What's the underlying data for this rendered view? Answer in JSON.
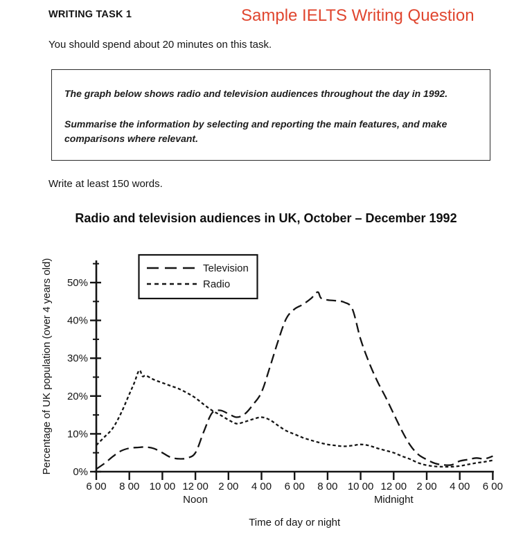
{
  "header": {
    "task_title": "WRITING TASK 1",
    "sample_title": "Sample IELTS Writing Question",
    "accent_color": "#e0462f",
    "time_note": "You should spend about 20 minutes on this task."
  },
  "prompt": {
    "line1": "The graph below shows radio and television audiences throughout the day in 1992.",
    "line2": "Summarise the information by selecting and reporting the main features, and make comparisons where relevant.",
    "word_note": "Write at least 150 words."
  },
  "chart_data": {
    "type": "line",
    "title": "Radio and television audiences in UK, October – December 1992",
    "xlabel": "Time of day or night",
    "ylabel": "Percentage of UK population (over 4 years old)",
    "stroke_color": "#141414",
    "grid": false,
    "legend_position": "top-left-inside",
    "x_hours_range": [
      6,
      30
    ],
    "ylim": [
      0,
      55
    ],
    "x_ticks": [
      {
        "t": 6,
        "label": "6 00"
      },
      {
        "t": 8,
        "label": "8 00"
      },
      {
        "t": 10,
        "label": "10 00"
      },
      {
        "t": 12,
        "label": "12 00",
        "sub": "Noon"
      },
      {
        "t": 14,
        "label": "2 00"
      },
      {
        "t": 16,
        "label": "4 00"
      },
      {
        "t": 18,
        "label": "6 00"
      },
      {
        "t": 20,
        "label": "8 00"
      },
      {
        "t": 22,
        "label": "10 00"
      },
      {
        "t": 24,
        "label": "12 00",
        "sub": "Midnight"
      },
      {
        "t": 26,
        "label": "2 00"
      },
      {
        "t": 28,
        "label": "4 00"
      },
      {
        "t": 30,
        "label": "6 00"
      }
    ],
    "y_ticks": [
      {
        "v": 0,
        "label": "0%"
      },
      {
        "v": 10,
        "label": "10%"
      },
      {
        "v": 20,
        "label": "20%"
      },
      {
        "v": 30,
        "label": "30%"
      },
      {
        "v": 40,
        "label": "40%"
      },
      {
        "v": 50,
        "label": "50%"
      }
    ],
    "y_minor_ticks": [
      5,
      15,
      25,
      35,
      45,
      55
    ],
    "legend": [
      {
        "name": "Television",
        "dash": "long"
      },
      {
        "name": "Radio",
        "dash": "short"
      }
    ],
    "series": [
      {
        "name": "Television",
        "dash": "long",
        "points": [
          [
            6,
            0.7
          ],
          [
            6.5,
            2.2
          ],
          [
            7,
            4
          ],
          [
            7.5,
            5.5
          ],
          [
            8,
            6.2
          ],
          [
            8.5,
            6.4
          ],
          [
            9,
            6.5
          ],
          [
            9.5,
            6.1
          ],
          [
            10,
            5
          ],
          [
            10.5,
            3.8
          ],
          [
            11,
            3.4
          ],
          [
            11.5,
            3.6
          ],
          [
            12,
            5
          ],
          [
            12.5,
            10.5
          ],
          [
            13,
            15.5
          ],
          [
            13.5,
            16.2
          ],
          [
            14,
            15.3
          ],
          [
            14.5,
            14.4
          ],
          [
            15,
            15.3
          ],
          [
            15.5,
            17.8
          ],
          [
            16,
            21
          ],
          [
            16.5,
            27.5
          ],
          [
            17,
            34.5
          ],
          [
            17.5,
            40.5
          ],
          [
            18,
            43
          ],
          [
            18.5,
            44.2
          ],
          [
            19,
            45.8
          ],
          [
            19.4,
            47.5
          ],
          [
            19.6,
            45.9
          ],
          [
            20,
            45.4
          ],
          [
            20.5,
            45.2
          ],
          [
            21,
            44.8
          ],
          [
            21.5,
            43
          ],
          [
            22,
            35
          ],
          [
            22.5,
            29
          ],
          [
            23,
            24
          ],
          [
            23.5,
            19.8
          ],
          [
            24,
            15.3
          ],
          [
            24.5,
            10.8
          ],
          [
            25,
            7
          ],
          [
            25.5,
            4.5
          ],
          [
            26,
            3.2
          ],
          [
            26.5,
            2.2
          ],
          [
            27,
            1.8
          ],
          [
            27.5,
            1.8
          ],
          [
            28,
            2.8
          ],
          [
            28.5,
            3.2
          ],
          [
            29,
            3.6
          ],
          [
            29.5,
            3.4
          ],
          [
            30,
            4.1
          ]
        ]
      },
      {
        "name": "Radio",
        "dash": "short",
        "points": [
          [
            6,
            7
          ],
          [
            6.5,
            9.2
          ],
          [
            7,
            11.5
          ],
          [
            7.5,
            15.5
          ],
          [
            8,
            20.5
          ],
          [
            8.3,
            23.5
          ],
          [
            8.6,
            26.8
          ],
          [
            8.8,
            25.2
          ],
          [
            9,
            25.4
          ],
          [
            9.5,
            24.3
          ],
          [
            10,
            23.5
          ],
          [
            10.5,
            22.7
          ],
          [
            11,
            21.9
          ],
          [
            11.5,
            20.8
          ],
          [
            12,
            19.5
          ],
          [
            12.5,
            17.8
          ],
          [
            13,
            16.2
          ],
          [
            13.5,
            15
          ],
          [
            14,
            13.7
          ],
          [
            14.5,
            12.7
          ],
          [
            15,
            13.2
          ],
          [
            15.5,
            13.9
          ],
          [
            16,
            14.4
          ],
          [
            16.5,
            13.7
          ],
          [
            17,
            12.2
          ],
          [
            17.5,
            10.8
          ],
          [
            18,
            9.9
          ],
          [
            18.5,
            9
          ],
          [
            19,
            8.3
          ],
          [
            19.5,
            7.7
          ],
          [
            20,
            7.2
          ],
          [
            20.5,
            6.9
          ],
          [
            21,
            6.7
          ],
          [
            21.5,
            6.9
          ],
          [
            22,
            7.2
          ],
          [
            22.5,
            6.9
          ],
          [
            23,
            6.2
          ],
          [
            23.5,
            5.6
          ],
          [
            24,
            5
          ],
          [
            24.5,
            4.1
          ],
          [
            25,
            3.3
          ],
          [
            25.5,
            2.3
          ],
          [
            26,
            1.7
          ],
          [
            26.5,
            1.4
          ],
          [
            27,
            1.3
          ],
          [
            27.5,
            1.3
          ],
          [
            28,
            1.5
          ],
          [
            28.5,
            1.9
          ],
          [
            29,
            2.3
          ],
          [
            29.5,
            2.6
          ],
          [
            30,
            3
          ]
        ]
      }
    ]
  }
}
